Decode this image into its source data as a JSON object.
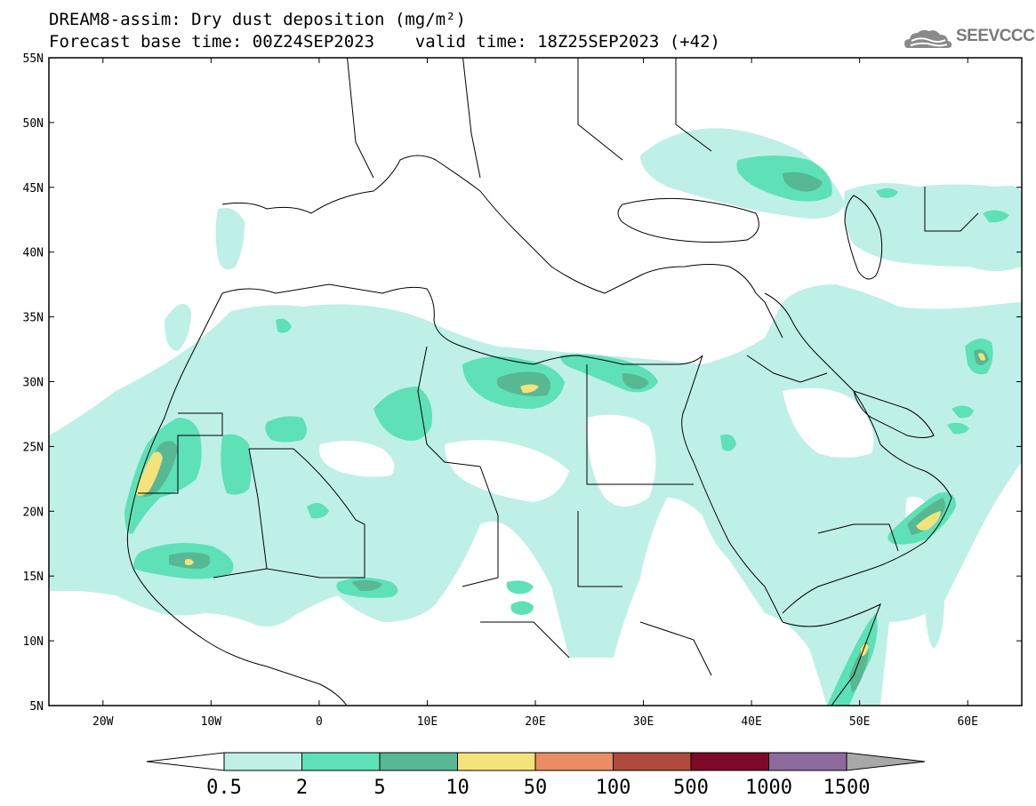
{
  "title": {
    "line1": "DREAM8-assim: Dry dust deposition (mg/m²)",
    "line2": "Forecast base time: 00Z24SEP2023    valid time: 18Z25SEP2023 (+42)"
  },
  "logo": {
    "text": "SEEVCCC",
    "icon": "cloud-logo-icon"
  },
  "map": {
    "lon_range": [
      -25,
      65
    ],
    "lat_range": [
      5,
      55
    ],
    "x_ticks": [
      "20W",
      "10W",
      "0",
      "10E",
      "20E",
      "30E",
      "40E",
      "50E",
      "60E"
    ],
    "x_tick_values": [
      -20,
      -10,
      0,
      10,
      20,
      30,
      40,
      50,
      60
    ],
    "y_ticks": [
      "55N",
      "50N",
      "45N",
      "40N",
      "35N",
      "30N",
      "25N",
      "20N",
      "15N",
      "10N",
      "5N"
    ],
    "y_tick_values": [
      55,
      50,
      45,
      40,
      35,
      30,
      25,
      20,
      15,
      10,
      5
    ]
  },
  "colorbar": {
    "labels": [
      "0.5",
      "2",
      "5",
      "10",
      "50",
      "100",
      "500",
      "1000",
      "1500"
    ],
    "colors": [
      "#ffffff",
      "#bff0e8",
      "#5ee1b7",
      "#58b893",
      "#f4e27a",
      "#ea8c64",
      "#b04a3d",
      "#7e0a2a",
      "#8c6a9c",
      "#a8a8a8"
    ]
  }
}
